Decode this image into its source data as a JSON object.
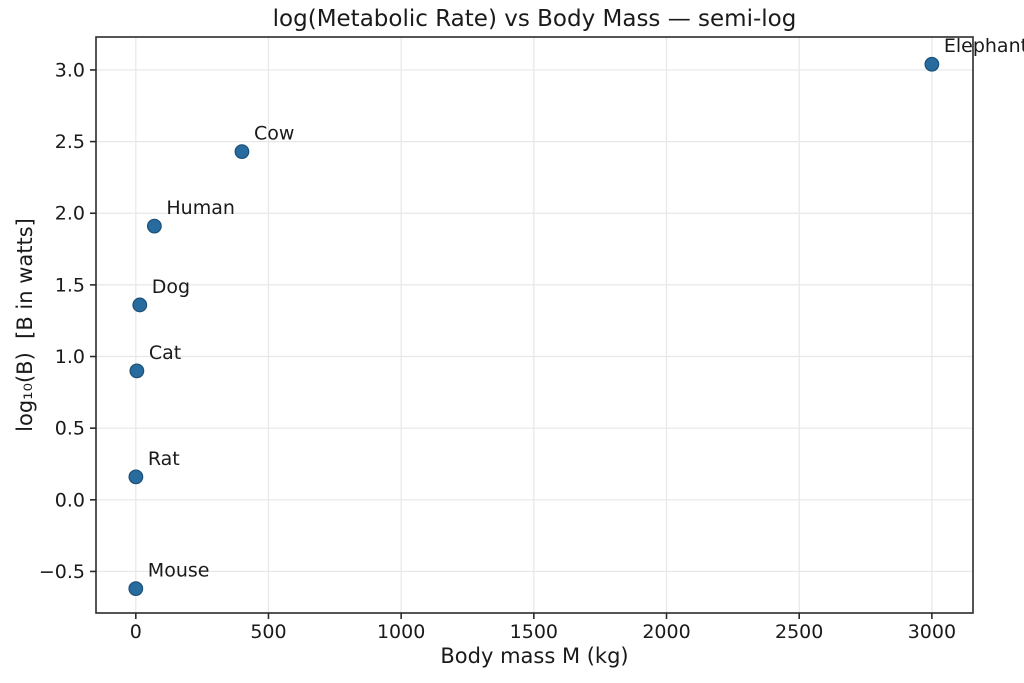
{
  "chart_data": {
    "type": "scatter",
    "title": "log(Metabolic Rate) vs Body Mass — semi-log",
    "xlabel": "Body mass M (kg)",
    "ylabel": "log₁₀(B)  [B in watts]",
    "xlim": [
      -150,
      3155
    ],
    "ylim": [
      -0.79,
      3.23
    ],
    "grid": true,
    "legend": false,
    "x_ticks": {
      "values": [
        0,
        500,
        1000,
        1500,
        2000,
        2500,
        3000
      ],
      "labels": [
        "0",
        "500",
        "1000",
        "1500",
        "2000",
        "2500",
        "3000"
      ]
    },
    "y_ticks": {
      "values": [
        -0.5,
        0.0,
        0.5,
        1.0,
        1.5,
        2.0,
        2.5,
        3.0
      ],
      "labels": [
        "−0.5",
        "0.0",
        "0.5",
        "1.0",
        "1.5",
        "2.0",
        "2.5",
        "3.0"
      ]
    },
    "points": [
      {
        "label": "Mouse",
        "x": 0.02,
        "y": -0.62
      },
      {
        "label": "Rat",
        "x": 0.3,
        "y": 0.16
      },
      {
        "label": "Cat",
        "x": 4,
        "y": 0.9
      },
      {
        "label": "Dog",
        "x": 15,
        "y": 1.36
      },
      {
        "label": "Human",
        "x": 70,
        "y": 1.91
      },
      {
        "label": "Cow",
        "x": 400,
        "y": 2.43
      },
      {
        "label": "Elephant",
        "x": 3000,
        "y": 3.04
      }
    ],
    "colors": {
      "point_fill": "#276b9f",
      "point_edge": "#1d5078",
      "grid": "#e7e7e7",
      "spine": "#2b2b2b",
      "text": "#1a1a1a",
      "background": "#ffffff"
    }
  }
}
